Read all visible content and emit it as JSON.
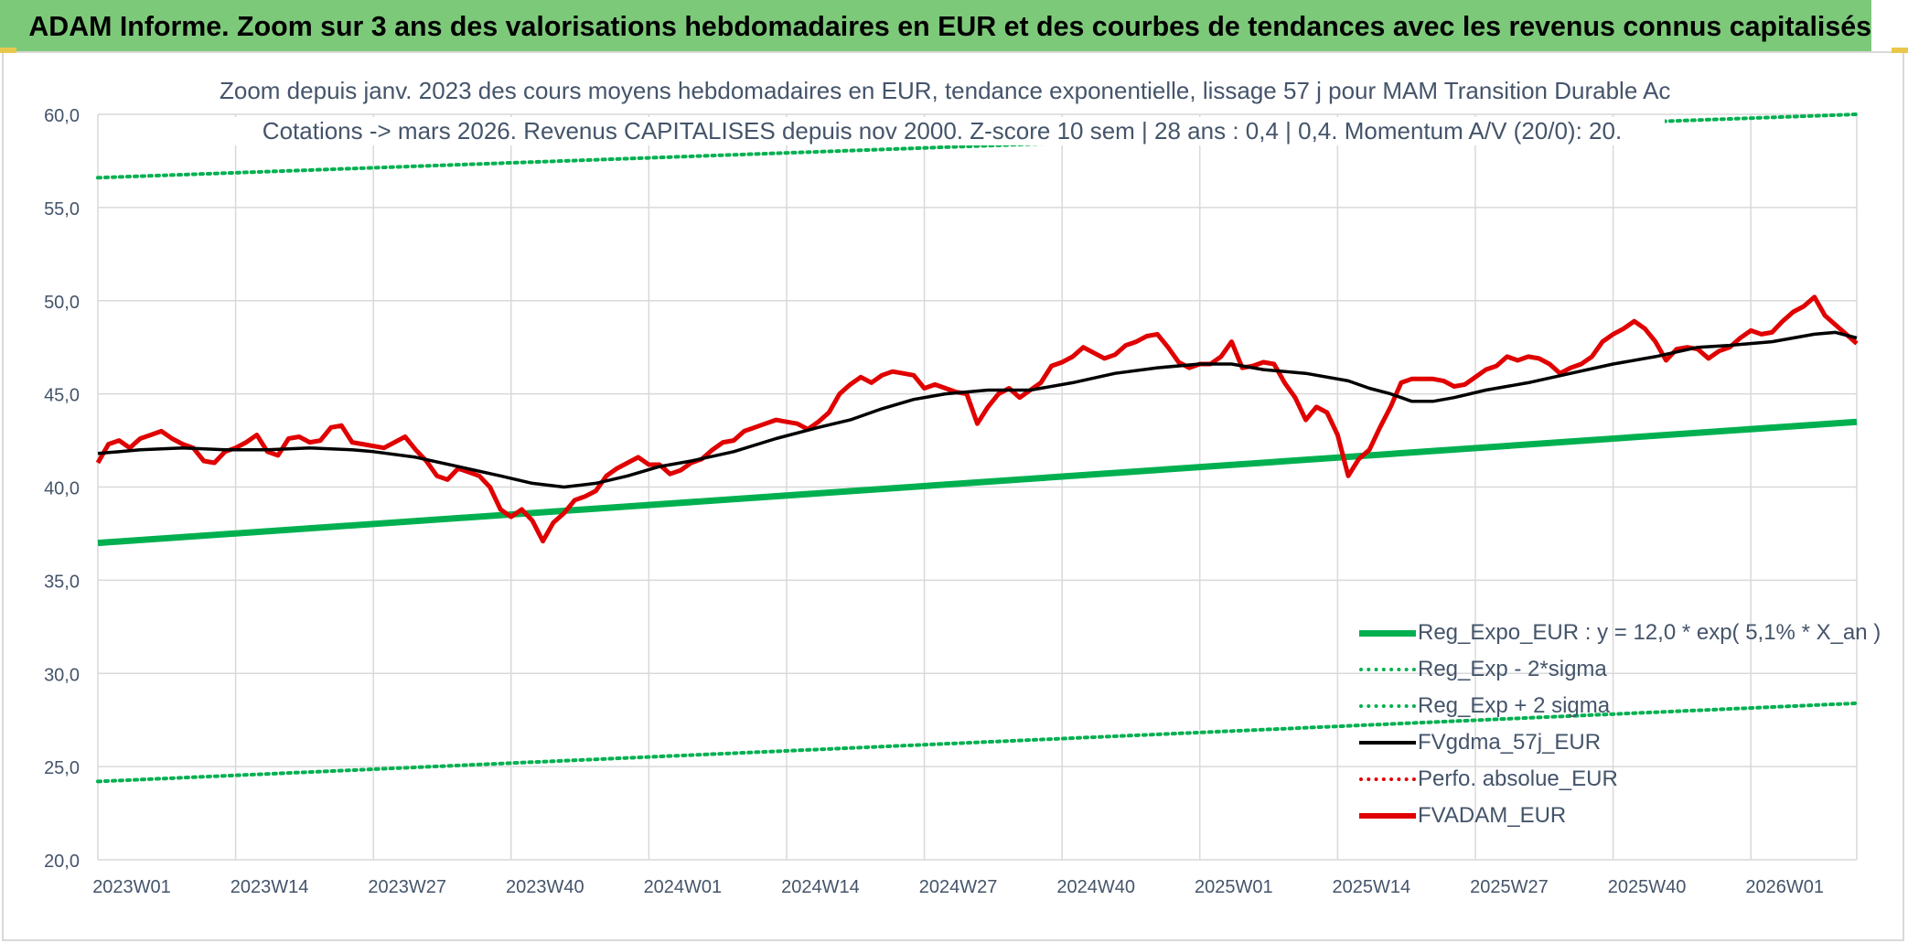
{
  "header": {
    "title": "ADAM Informe. Zoom sur 3 ans des valorisations hebdomadaires en EUR et des courbes de tendances avec les revenus connus capitalisés"
  },
  "colors": {
    "banner": "#7dc97a",
    "reg_expo": "#00b050",
    "fvgdma": "#000000",
    "perfo": "#e00000",
    "fvadam": "#e00000",
    "axis_text": "#44546a",
    "grid": "#d9d9d9"
  },
  "chart_data": {
    "type": "line",
    "title": "Zoom depuis janv. 2023 des cours moyens hebdomadaires en EUR, tendance exponentielle, lissage 57 j pour MAM Transition Durable Ac",
    "subtitle": "Cotations -> mars 2026. Revenus CAPITALISES depuis nov 2000. Z-score 10 sem | 28 ans : 0,4 | 0,4. Momentum A/V (20/0): 20.",
    "ylim": [
      20,
      60
    ],
    "yticks": [
      "20,0",
      "25,0",
      "30,0",
      "35,0",
      "40,0",
      "45,0",
      "50,0",
      "55,0",
      "60,0"
    ],
    "x_start_label": "2023W01",
    "x_count": 167,
    "x_tick_labels": [
      "2023W01",
      "2023W14",
      "2023W27",
      "2023W40",
      "2024W01",
      "2024W14",
      "2024W27",
      "2024W40",
      "2025W01",
      "2025W14",
      "2025W27",
      "2025W40",
      "2026W01"
    ],
    "x_tick_step": 13,
    "grid": true,
    "legend_position": "bottom-right",
    "series": [
      {
        "name": "Reg_Expo_EUR : y = 12,0 * exp( 5,1% *  X_an )",
        "style": "solid-thick",
        "color": "#00b050",
        "points": [
          [
            0,
            37.0
          ],
          [
            166,
            43.5
          ]
        ]
      },
      {
        "name": "Reg_Exp - 2*sigma",
        "style": "dotted",
        "color": "#00b050",
        "points": [
          [
            0,
            24.2
          ],
          [
            166,
            28.4
          ]
        ]
      },
      {
        "name": "Reg_Exp + 2 sigma",
        "style": "dotted",
        "color": "#00b050",
        "points": [
          [
            0,
            56.6
          ],
          [
            166,
            60.0
          ]
        ]
      },
      {
        "name": "FVgdma_57j_EUR",
        "style": "solid",
        "color": "#000000",
        "points": [
          [
            0,
            41.8
          ],
          [
            4,
            42.0
          ],
          [
            8,
            42.1
          ],
          [
            12,
            42.0
          ],
          [
            16,
            42.0
          ],
          [
            20,
            42.1
          ],
          [
            24,
            42.0
          ],
          [
            26,
            41.9
          ],
          [
            30,
            41.6
          ],
          [
            34,
            41.1
          ],
          [
            38,
            40.6
          ],
          [
            41,
            40.2
          ],
          [
            44,
            40.0
          ],
          [
            47,
            40.2
          ],
          [
            50,
            40.6
          ],
          [
            53,
            41.1
          ],
          [
            56,
            41.4
          ],
          [
            60,
            41.9
          ],
          [
            64,
            42.6
          ],
          [
            68,
            43.2
          ],
          [
            71,
            43.6
          ],
          [
            74,
            44.2
          ],
          [
            77,
            44.7
          ],
          [
            80,
            45.0
          ],
          [
            84,
            45.2
          ],
          [
            88,
            45.2
          ],
          [
            92,
            45.6
          ],
          [
            96,
            46.1
          ],
          [
            100,
            46.4
          ],
          [
            104,
            46.6
          ],
          [
            107,
            46.6
          ],
          [
            110,
            46.3
          ],
          [
            114,
            46.1
          ],
          [
            118,
            45.7
          ],
          [
            120,
            45.3
          ],
          [
            122,
            45.0
          ],
          [
            124,
            44.6
          ],
          [
            126,
            44.6
          ],
          [
            128,
            44.8
          ],
          [
            131,
            45.2
          ],
          [
            135,
            45.6
          ],
          [
            139,
            46.1
          ],
          [
            143,
            46.6
          ],
          [
            147,
            47.0
          ],
          [
            151,
            47.5
          ],
          [
            154,
            47.6
          ],
          [
            158,
            47.8
          ],
          [
            162,
            48.2
          ],
          [
            164,
            48.3
          ],
          [
            166,
            48.0
          ]
        ]
      },
      {
        "name": "Perfo. absolue_EUR",
        "style": "dotted",
        "color": "#e00000",
        "points": []
      },
      {
        "name": "FVADAM_EUR",
        "style": "solid-thick",
        "color": "#e00000",
        "points": [
          [
            0,
            41.3
          ],
          [
            1,
            42.3
          ],
          [
            2,
            42.5
          ],
          [
            3,
            42.1
          ],
          [
            4,
            42.6
          ],
          [
            5,
            42.8
          ],
          [
            6,
            43.0
          ],
          [
            7,
            42.6
          ],
          [
            8,
            42.3
          ],
          [
            9,
            42.1
          ],
          [
            10,
            41.4
          ],
          [
            11,
            41.3
          ],
          [
            12,
            41.9
          ],
          [
            13,
            42.1
          ],
          [
            14,
            42.4
          ],
          [
            15,
            42.8
          ],
          [
            16,
            41.9
          ],
          [
            17,
            41.7
          ],
          [
            18,
            42.6
          ],
          [
            19,
            42.7
          ],
          [
            20,
            42.4
          ],
          [
            21,
            42.5
          ],
          [
            22,
            43.2
          ],
          [
            23,
            43.3
          ],
          [
            24,
            42.4
          ],
          [
            25,
            42.3
          ],
          [
            27,
            42.1
          ],
          [
            29,
            42.7
          ],
          [
            30,
            42.0
          ],
          [
            31,
            41.4
          ],
          [
            32,
            40.6
          ],
          [
            33,
            40.4
          ],
          [
            34,
            41.0
          ],
          [
            36,
            40.6
          ],
          [
            37,
            40.0
          ],
          [
            38,
            38.8
          ],
          [
            39,
            38.4
          ],
          [
            40,
            38.8
          ],
          [
            41,
            38.2
          ],
          [
            42,
            37.1
          ],
          [
            43,
            38.1
          ],
          [
            44,
            38.6
          ],
          [
            45,
            39.3
          ],
          [
            46,
            39.5
          ],
          [
            47,
            39.8
          ],
          [
            48,
            40.6
          ],
          [
            49,
            41.0
          ],
          [
            50,
            41.3
          ],
          [
            51,
            41.6
          ],
          [
            52,
            41.2
          ],
          [
            53,
            41.2
          ],
          [
            54,
            40.7
          ],
          [
            55,
            40.9
          ],
          [
            56,
            41.3
          ],
          [
            57,
            41.5
          ],
          [
            58,
            42.0
          ],
          [
            59,
            42.4
          ],
          [
            60,
            42.5
          ],
          [
            61,
            43.0
          ],
          [
            62,
            43.2
          ],
          [
            63,
            43.4
          ],
          [
            64,
            43.6
          ],
          [
            65,
            43.5
          ],
          [
            66,
            43.4
          ],
          [
            67,
            43.1
          ],
          [
            68,
            43.5
          ],
          [
            69,
            44.0
          ],
          [
            70,
            45.0
          ],
          [
            71,
            45.5
          ],
          [
            72,
            45.9
          ],
          [
            73,
            45.6
          ],
          [
            74,
            46.0
          ],
          [
            75,
            46.2
          ],
          [
            76,
            46.1
          ],
          [
            77,
            46.0
          ],
          [
            78,
            45.3
          ],
          [
            79,
            45.5
          ],
          [
            80,
            45.3
          ],
          [
            81,
            45.1
          ],
          [
            82,
            45.0
          ],
          [
            83,
            43.4
          ],
          [
            84,
            44.3
          ],
          [
            85,
            45.0
          ],
          [
            86,
            45.3
          ],
          [
            87,
            44.8
          ],
          [
            88,
            45.2
          ],
          [
            89,
            45.6
          ],
          [
            90,
            46.5
          ],
          [
            91,
            46.7
          ],
          [
            92,
            47.0
          ],
          [
            93,
            47.5
          ],
          [
            94,
            47.2
          ],
          [
            95,
            46.9
          ],
          [
            96,
            47.1
          ],
          [
            97,
            47.6
          ],
          [
            98,
            47.8
          ],
          [
            99,
            48.1
          ],
          [
            100,
            48.2
          ],
          [
            101,
            47.5
          ],
          [
            102,
            46.7
          ],
          [
            103,
            46.4
          ],
          [
            104,
            46.6
          ],
          [
            105,
            46.6
          ],
          [
            106,
            47.0
          ],
          [
            107,
            47.8
          ],
          [
            108,
            46.4
          ],
          [
            109,
            46.5
          ],
          [
            110,
            46.7
          ],
          [
            111,
            46.6
          ],
          [
            112,
            45.6
          ],
          [
            113,
            44.8
          ],
          [
            114,
            43.6
          ],
          [
            115,
            44.3
          ],
          [
            116,
            44.0
          ],
          [
            117,
            42.8
          ],
          [
            118,
            40.6
          ],
          [
            119,
            41.5
          ],
          [
            120,
            42.0
          ],
          [
            121,
            43.2
          ],
          [
            122,
            44.3
          ],
          [
            123,
            45.6
          ],
          [
            124,
            45.8
          ],
          [
            125,
            45.8
          ],
          [
            126,
            45.8
          ],
          [
            127,
            45.7
          ],
          [
            128,
            45.4
          ],
          [
            129,
            45.5
          ],
          [
            130,
            45.9
          ],
          [
            131,
            46.3
          ],
          [
            132,
            46.5
          ],
          [
            133,
            47.0
          ],
          [
            134,
            46.8
          ],
          [
            135,
            47.0
          ],
          [
            136,
            46.9
          ],
          [
            137,
            46.6
          ],
          [
            138,
            46.1
          ],
          [
            139,
            46.4
          ],
          [
            140,
            46.6
          ],
          [
            141,
            47.0
          ],
          [
            142,
            47.8
          ],
          [
            143,
            48.2
          ],
          [
            144,
            48.5
          ],
          [
            145,
            48.9
          ],
          [
            146,
            48.5
          ],
          [
            147,
            47.8
          ],
          [
            148,
            46.8
          ],
          [
            149,
            47.4
          ],
          [
            150,
            47.5
          ],
          [
            151,
            47.4
          ],
          [
            152,
            46.9
          ],
          [
            153,
            47.3
          ],
          [
            154,
            47.5
          ],
          [
            155,
            48.0
          ],
          [
            156,
            48.4
          ],
          [
            157,
            48.2
          ],
          [
            158,
            48.3
          ],
          [
            159,
            48.9
          ],
          [
            160,
            49.4
          ],
          [
            161,
            49.7
          ],
          [
            162,
            50.2
          ],
          [
            163,
            49.2
          ],
          [
            164,
            48.7
          ],
          [
            165,
            48.2
          ],
          [
            166,
            47.7
          ]
        ]
      }
    ]
  }
}
